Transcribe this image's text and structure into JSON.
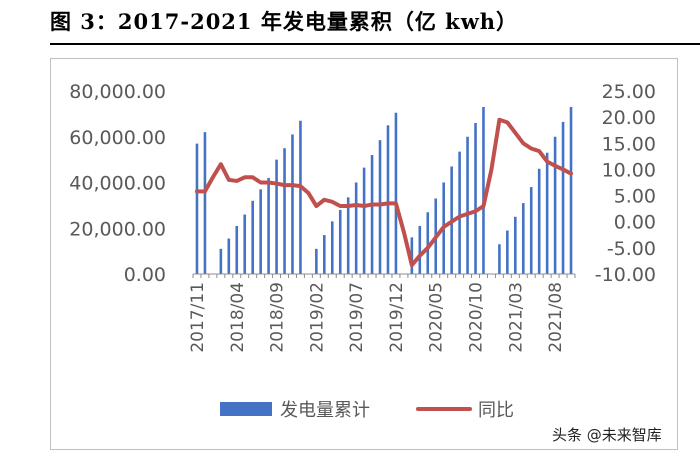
{
  "page": {
    "figure_title": "图 3：2017-2021 年发电量累积（亿 kwh）",
    "watermark": "头条 @未来智库"
  },
  "chart_data": {
    "type": "bar-line",
    "title": "图 3：2017-2021 年发电量累积（亿 kwh）",
    "xlabel": "",
    "ylabel": "",
    "legend_position": "bottom",
    "grid": false,
    "colors": {
      "bars": "#4472c4",
      "line": "#c0504d"
    },
    "x_tick_labels": [
      "2017/11",
      "2018/04",
      "2018/09",
      "2019/02",
      "2019/07",
      "2019/12",
      "2020/05",
      "2020/10",
      "2021/03",
      "2021/08"
    ],
    "x_tick_indices": [
      0,
      5,
      10,
      15,
      20,
      25,
      30,
      35,
      40,
      45
    ],
    "y_left": {
      "ticks": [
        "0.00",
        "20,000.00",
        "40,000.00",
        "60,000.00",
        "80,000.00"
      ],
      "range": [
        0,
        80000
      ]
    },
    "y_right": {
      "ticks": [
        "-10.00",
        "-5.00",
        "0.00",
        "5.00",
        "10.00",
        "15.00",
        "20.00",
        "25.00"
      ],
      "range": [
        -10,
        25
      ]
    },
    "series": [
      {
        "name": "发电量累计",
        "type": "bar",
        "axis": "left",
        "values": [
          57000,
          62000,
          null,
          11000,
          15500,
          21000,
          26000,
          32000,
          37000,
          42000,
          50000,
          55000,
          61000,
          67000,
          null,
          11000,
          17000,
          23000,
          28000,
          33500,
          40000,
          46500,
          52000,
          58500,
          65000,
          70500,
          null,
          16000,
          21000,
          27000,
          33000,
          40000,
          47000,
          53500,
          60000,
          66000,
          73000,
          null,
          13000,
          19000,
          25000,
          31000,
          38000,
          46000,
          53000,
          60000,
          66500,
          73000
        ]
      },
      {
        "name": "同比",
        "type": "line",
        "axis": "right",
        "values": [
          5.8,
          5.8,
          8.5,
          11.0,
          8.0,
          7.8,
          8.5,
          8.5,
          7.5,
          7.5,
          7.3,
          7.0,
          7.0,
          6.8,
          5.5,
          3.0,
          4.2,
          3.8,
          3.0,
          3.0,
          3.2,
          3.0,
          3.3,
          3.3,
          3.5,
          3.5,
          -2.0,
          -8.3,
          -6.5,
          -5.0,
          -3.0,
          -1.0,
          0.0,
          1.0,
          1.5,
          2.0,
          3.0,
          10.0,
          19.5,
          19.0,
          17.0,
          15.0,
          14.0,
          13.5,
          11.5,
          10.7,
          10.0,
          9.2
        ]
      }
    ]
  }
}
